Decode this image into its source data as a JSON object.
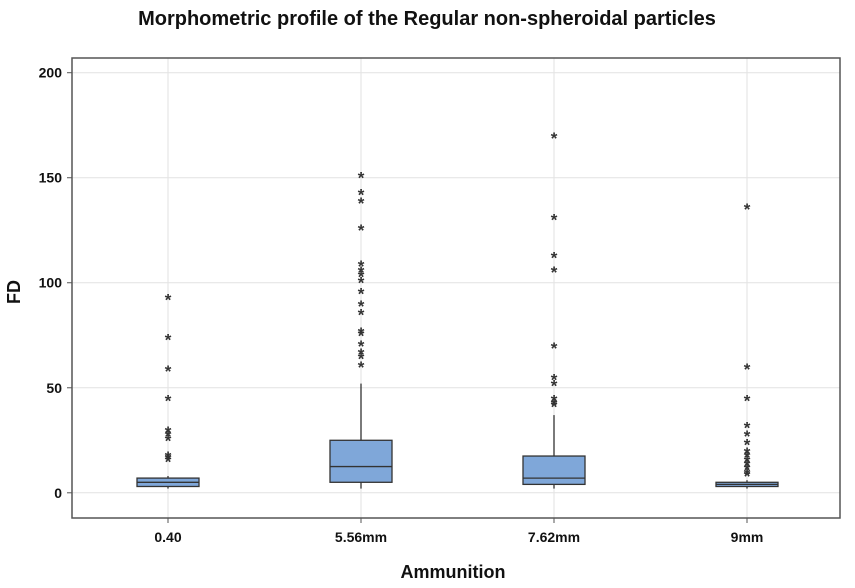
{
  "chart_data": {
    "type": "boxplot",
    "title": "Morphometric profile of the Regular non-spheroidal particles",
    "xlabel": "Ammunition",
    "ylabel": "FD",
    "ylim": [
      -12,
      207
    ],
    "yticks": [
      0,
      50,
      100,
      150,
      200
    ],
    "grid": true,
    "box_color": "#7fa7d9",
    "categories": [
      "0.40",
      "5.56mm",
      "7.62mm",
      "9mm"
    ],
    "boxes": [
      {
        "category": "0.40",
        "whisker_low": 2,
        "q1": 3,
        "median": 5,
        "q3": 7,
        "whisker_high": 8,
        "outliers": [
          92,
          73,
          58,
          44,
          29,
          27,
          25,
          17,
          16,
          15
        ]
      },
      {
        "category": "5.56mm",
        "whisker_low": 2,
        "q1": 5,
        "median": 12.5,
        "q3": 25,
        "whisker_high": 52,
        "outliers": [
          150,
          142,
          138,
          125,
          108,
          105,
          103,
          100,
          95,
          89,
          85,
          76,
          75,
          70,
          66,
          64,
          60
        ]
      },
      {
        "category": "7.62mm",
        "whisker_low": 2,
        "q1": 4,
        "median": 7,
        "q3": 17.5,
        "whisker_high": 37,
        "outliers": [
          169,
          130,
          112,
          105,
          69,
          54,
          51,
          44,
          42,
          41
        ]
      },
      {
        "category": "9mm",
        "whisker_low": 2,
        "q1": 3,
        "median": 4,
        "q3": 5,
        "whisker_high": 6,
        "outliers": [
          135,
          59,
          44,
          31,
          27,
          23,
          19,
          17,
          15,
          13,
          11,
          9,
          8
        ]
      }
    ]
  }
}
